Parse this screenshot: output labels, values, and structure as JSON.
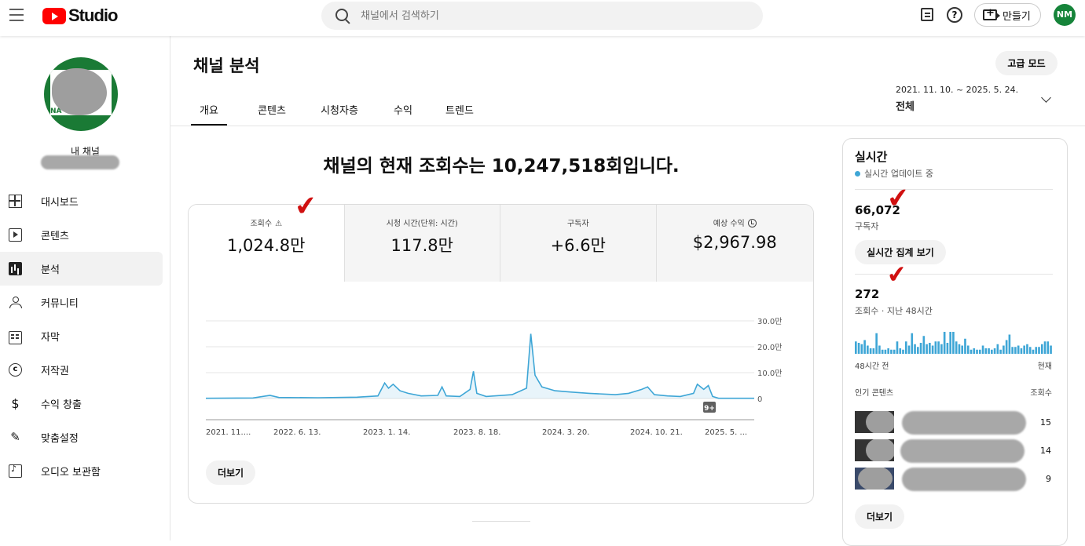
{
  "header": {
    "logo_text": "Studio",
    "search_placeholder": "채널에서 검색하기",
    "create_label": "만들기",
    "avatar_initials": "NM",
    "help_glyph": "?"
  },
  "sidebar": {
    "my_channel_label": "내 채널",
    "avatar_letters": "NA",
    "items": [
      {
        "label": "대시보드",
        "icon": "dashboard-icon"
      },
      {
        "label": "콘텐츠",
        "icon": "content-icon"
      },
      {
        "label": "분석",
        "icon": "analytics-icon",
        "active": true
      },
      {
        "label": "커뮤니티",
        "icon": "community-icon"
      },
      {
        "label": "자막",
        "icon": "subtitles-icon"
      },
      {
        "label": "저작권",
        "icon": "copyright-icon"
      },
      {
        "label": "수익 창출",
        "icon": "monetization-icon"
      },
      {
        "label": "맞춤설정",
        "icon": "customization-icon"
      },
      {
        "label": "오디오 보관함",
        "icon": "audio-library-icon"
      }
    ],
    "copyright_glyph": "c",
    "earn_glyph": "$",
    "custom_glyph": "✎"
  },
  "page": {
    "title": "채널 분석",
    "advanced_mode_label": "고급 모드",
    "tabs": [
      "개요",
      "콘텐츠",
      "시청자층",
      "수익",
      "트렌드"
    ],
    "date_range": "2021. 11. 10. ~ 2025. 5. 24.",
    "period_label": "전체",
    "headline": "채널의 현재 조회수는 10,247,518회입니다."
  },
  "metrics": [
    {
      "label": "조회수",
      "value": "1,024.8만"
    },
    {
      "label": "시청 시간(단위: 시간)",
      "value": "117.8만"
    },
    {
      "label": "구독자",
      "value": "+6.6만"
    },
    {
      "label": "예상 수익",
      "value": "$2,967.98"
    }
  ],
  "warn_glyph": "⚠",
  "check_glyph": "✔",
  "chart_data": {
    "type": "line",
    "y_ticks": [
      "30.0만",
      "20.0만",
      "10.0만",
      "0"
    ],
    "ylim": [
      0,
      300000
    ],
    "x_tick_labels": [
      "2021. 11....",
      "2022. 6. 13.",
      "2023. 1. 14.",
      "2023. 8. 18.",
      "2024. 3. 20.",
      "2024. 10. 21.",
      "2025. 5. ..."
    ],
    "x_start": "2021-11-10",
    "x_end": "2025-05-24",
    "badge": "9+",
    "series": [
      {
        "color": "#3ea6d6",
        "points": [
          [
            "2021-11-10",
            1000
          ],
          [
            "2022-03-01",
            2000
          ],
          [
            "2022-04-10",
            12000
          ],
          [
            "2022-05-01",
            4000
          ],
          [
            "2022-08-01",
            3000
          ],
          [
            "2022-11-01",
            5000
          ],
          [
            "2022-12-20",
            10000
          ],
          [
            "2023-01-05",
            60000
          ],
          [
            "2023-01-14",
            40000
          ],
          [
            "2023-01-25",
            55000
          ],
          [
            "2023-02-10",
            30000
          ],
          [
            "2023-03-01",
            20000
          ],
          [
            "2023-04-01",
            10000
          ],
          [
            "2023-05-10",
            12000
          ],
          [
            "2023-05-20",
            45000
          ],
          [
            "2023-05-30",
            10000
          ],
          [
            "2023-07-01",
            8000
          ],
          [
            "2023-07-25",
            35000
          ],
          [
            "2023-08-02",
            105000
          ],
          [
            "2023-08-10",
            20000
          ],
          [
            "2023-09-01",
            8000
          ],
          [
            "2023-11-01",
            15000
          ],
          [
            "2023-12-05",
            40000
          ],
          [
            "2023-12-15",
            250000
          ],
          [
            "2023-12-25",
            90000
          ],
          [
            "2024-01-10",
            45000
          ],
          [
            "2024-02-10",
            30000
          ],
          [
            "2024-03-20",
            25000
          ],
          [
            "2024-05-01",
            20000
          ],
          [
            "2024-07-01",
            15000
          ],
          [
            "2024-08-01",
            20000
          ],
          [
            "2024-09-01",
            35000
          ],
          [
            "2024-09-15",
            45000
          ],
          [
            "2024-10-01",
            15000
          ],
          [
            "2024-11-01",
            10000
          ],
          [
            "2024-12-01",
            8000
          ],
          [
            "2025-01-01",
            20000
          ],
          [
            "2025-01-10",
            55000
          ],
          [
            "2025-01-25",
            35000
          ],
          [
            "2025-02-05",
            50000
          ],
          [
            "2025-02-15",
            8000
          ],
          [
            "2025-03-01",
            1000
          ],
          [
            "2025-05-24",
            1000
          ]
        ]
      }
    ]
  },
  "chart_more_label": "더보기",
  "realtime": {
    "title": "실시간",
    "status": "실시간 업데이트 중",
    "subscribers": "66,072",
    "subscribers_label": "구독자",
    "view_realtime_label": "실시간 집계 보기",
    "views": "272",
    "views_label": "조회수 · 지난 48시간",
    "bars": [
      9,
      8,
      7,
      10,
      6,
      4,
      4,
      15,
      6,
      3,
      3,
      4,
      3,
      3,
      9,
      4,
      3,
      9,
      6,
      15,
      7,
      5,
      8,
      13,
      7,
      8,
      6,
      9,
      9,
      7,
      16,
      8,
      16,
      16,
      9,
      7,
      6,
      11,
      6,
      3,
      4,
      3,
      3,
      6,
      4,
      4,
      3,
      4,
      7,
      3,
      6,
      10,
      14,
      5,
      5,
      6,
      4,
      6,
      7,
      5,
      3,
      5,
      5,
      7,
      9,
      9,
      6
    ],
    "axis_left": "48시간 전",
    "axis_right": "현재",
    "popular_label": "인기 콘텐츠",
    "popular_views_label": "조회수",
    "popular": [
      {
        "count": "15"
      },
      {
        "count": "14"
      },
      {
        "count": "9"
      }
    ],
    "more_label": "더보기"
  }
}
